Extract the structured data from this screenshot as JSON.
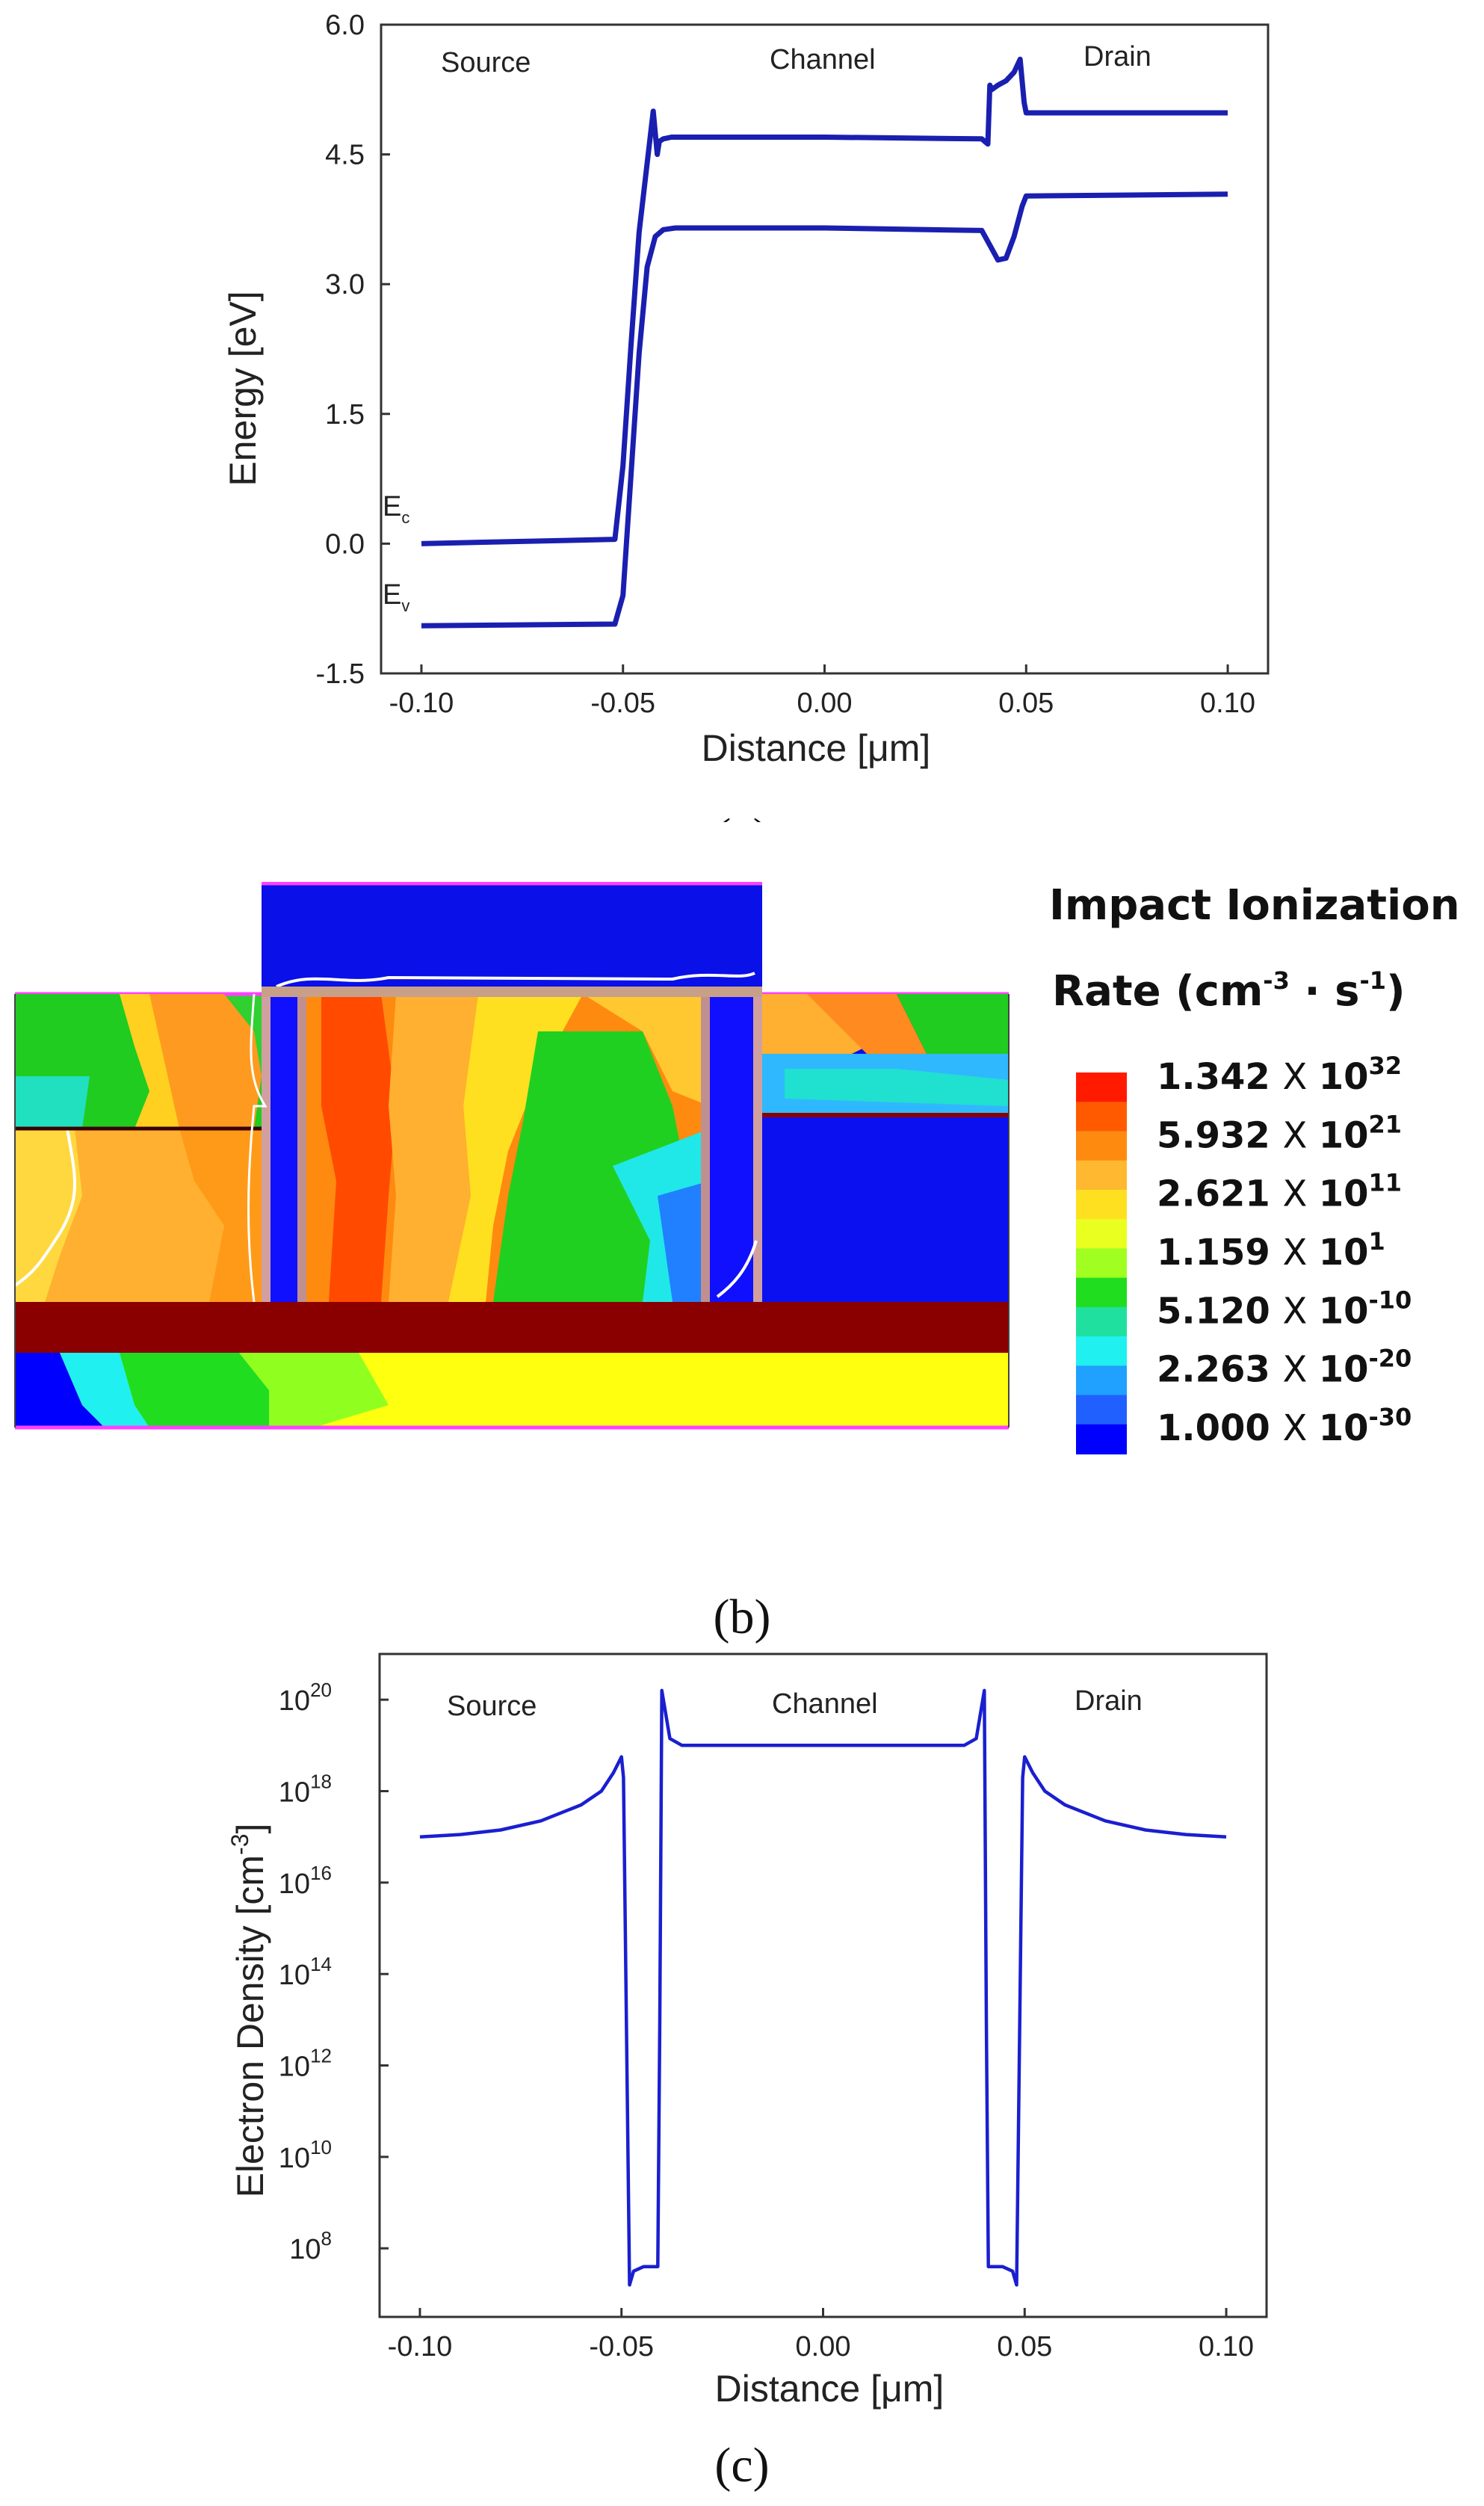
{
  "chart_data": [
    {
      "type": "line",
      "panel_label": "(a)",
      "xlabel": "Distance [μm]",
      "ylabel": "Energy [eV]",
      "xlim": [
        -0.11,
        0.11
      ],
      "ylim": [
        -1.5,
        6.0
      ],
      "xticks": [
        "-0.10",
        "-0.05",
        "0.00",
        "0.05",
        "0.10"
      ],
      "yticks": [
        "-1.5",
        "0.0",
        "1.5",
        "3.0",
        "4.5",
        "6.0"
      ],
      "regions": [
        "Source",
        "Channel",
        "Drain"
      ],
      "series_labels": {
        "ec_main": "E",
        "ec_sub": "c",
        "ev_main": "E",
        "ev_sub": "v"
      },
      "series": [
        {
          "name": "Ec",
          "x": [
            -0.1,
            -0.052,
            -0.05,
            -0.048,
            -0.046,
            -0.044,
            -0.0425,
            -0.0415,
            -0.041,
            -0.04,
            -0.038,
            0.0,
            0.039,
            0.0405,
            0.041,
            0.0415,
            0.043,
            0.045,
            0.047,
            0.0485,
            0.0495,
            0.05,
            0.1
          ],
          "y": [
            0.0,
            0.05,
            0.9,
            2.3,
            3.6,
            4.4,
            5.0,
            4.5,
            4.65,
            4.68,
            4.7,
            4.7,
            4.68,
            4.62,
            5.3,
            5.25,
            5.3,
            5.35,
            5.45,
            5.6,
            5.1,
            4.98,
            4.98
          ]
        },
        {
          "name": "Ev",
          "x": [
            -0.1,
            -0.052,
            -0.05,
            -0.048,
            -0.046,
            -0.044,
            -0.042,
            -0.04,
            -0.037,
            0.0,
            0.039,
            0.041,
            0.043,
            0.045,
            0.047,
            0.049,
            0.05,
            0.1
          ],
          "y": [
            -0.95,
            -0.93,
            -0.6,
            0.8,
            2.2,
            3.2,
            3.55,
            3.63,
            3.65,
            3.65,
            3.62,
            3.45,
            3.28,
            3.3,
            3.55,
            3.9,
            4.02,
            4.04
          ]
        }
      ]
    },
    {
      "type": "heatmap",
      "panel_label": "(b)",
      "title_line1": "Impact Ionization",
      "title_line2": "Rate (cm",
      "title_sup1": "-3",
      "title_mid": " · s",
      "title_sup2": "-1",
      "title_end": ")",
      "colorbar_ticks": [
        {
          "mantissa": "1.342",
          "x": "X",
          "base": "10",
          "exp": "32"
        },
        {
          "mantissa": "5.932",
          "x": "X",
          "base": "10",
          "exp": "21"
        },
        {
          "mantissa": "2.621",
          "x": "X",
          "base": "10",
          "exp": "11"
        },
        {
          "mantissa": "1.159",
          "x": "X",
          "base": "10",
          "exp": "1"
        },
        {
          "mantissa": "5.120",
          "x": "X",
          "base": "10",
          "exp": "-10"
        },
        {
          "mantissa": "2.263",
          "x": "X",
          "base": "10",
          "exp": "-20"
        },
        {
          "mantissa": "1.000",
          "x": "X",
          "base": "10",
          "exp": "-30"
        }
      ],
      "colors": [
        "#ff1a00",
        "#ff5a00",
        "#ff8a10",
        "#ffb830",
        "#ffe020",
        "#e8ff20",
        "#a0ff20",
        "#20dd20",
        "#20e0a0",
        "#20f0f0",
        "#20a0ff",
        "#2060ff",
        "#0000ff"
      ]
    },
    {
      "type": "line",
      "panel_label": "(c)",
      "xlabel": "Distance [μm]",
      "ylabel": "Electron Density [cm",
      "ylabel_sup": "-3",
      "ylabel_end": "]",
      "xlim": [
        -0.11,
        0.11
      ],
      "ylim_log10": [
        6.5,
        21
      ],
      "xticks": [
        "-0.10",
        "-0.05",
        "0.00",
        "0.05",
        "0.10"
      ],
      "yticks": [
        {
          "base": "10",
          "exp": "20"
        },
        {
          "base": "10",
          "exp": "18"
        },
        {
          "base": "10",
          "exp": "16"
        },
        {
          "base": "10",
          "exp": "14"
        },
        {
          "base": "10",
          "exp": "12"
        },
        {
          "base": "10",
          "exp": "10"
        },
        {
          "base": "10",
          "exp": "8"
        }
      ],
      "regions": [
        "Source",
        "Channel",
        "Drain"
      ],
      "series": [
        {
          "name": "Electron density (log10)",
          "x": [
            -0.1,
            -0.09,
            -0.08,
            -0.07,
            -0.06,
            -0.055,
            -0.052,
            -0.05,
            -0.0495,
            -0.048,
            -0.047,
            -0.0445,
            -0.042,
            -0.041,
            -0.0405,
            -0.04,
            -0.038,
            -0.035,
            0.0,
            0.035,
            0.038,
            0.04,
            0.0405,
            0.041,
            0.042,
            0.0445,
            0.047,
            0.048,
            0.0495,
            0.05,
            0.052,
            0.055,
            0.06,
            0.07,
            0.08,
            0.09,
            0.1
          ],
          "y": [
            17.0,
            17.05,
            17.15,
            17.35,
            17.7,
            18.0,
            18.4,
            18.75,
            18.3,
            7.2,
            7.5,
            7.6,
            7.6,
            7.6,
            13.0,
            20.2,
            19.15,
            19.0,
            19.0,
            19.0,
            19.15,
            20.2,
            13.0,
            7.6,
            7.6,
            7.6,
            7.5,
            7.2,
            18.3,
            18.75,
            18.4,
            18.0,
            17.7,
            17.35,
            17.15,
            17.05,
            17.0
          ]
        }
      ]
    }
  ]
}
